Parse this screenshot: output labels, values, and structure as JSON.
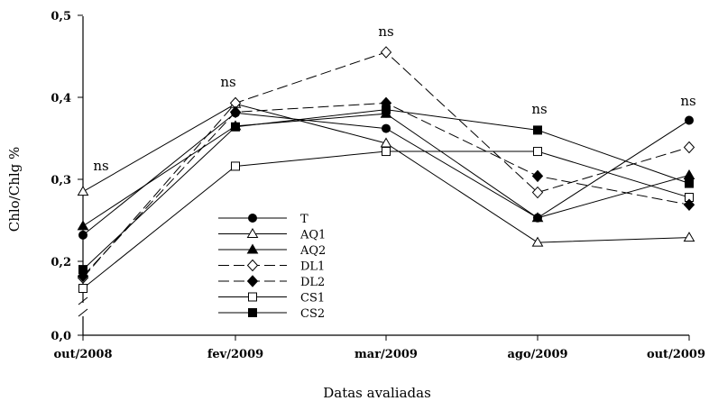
{
  "chart_data": {
    "type": "line",
    "title": "",
    "xlabel": "Datas avaliadas",
    "ylabel": "Chlo/Chlg %",
    "x": [
      "out/2008",
      "fev/2009",
      "mar/2009",
      "ago/2009",
      "out/2009"
    ],
    "yticks": [
      "0,0",
      "0,2",
      "0,3",
      "0,4",
      "0,5"
    ],
    "ylim": [
      0.15,
      0.5
    ],
    "y_axis_break": true,
    "grid": false,
    "legend_position": "center-left",
    "annotations": [
      "ns",
      "ns",
      "ns",
      "ns",
      "ns"
    ],
    "series": [
      {
        "name": "T",
        "line": "solid",
        "marker": "circle",
        "filled": true,
        "values": [
          0.232,
          0.381,
          0.362,
          0.253,
          0.372
        ]
      },
      {
        "name": "AQ1",
        "line": "solid",
        "marker": "triangle",
        "filled": false,
        "values": [
          0.285,
          0.392,
          0.344,
          0.223,
          0.229
        ]
      },
      {
        "name": "AQ2",
        "line": "solid",
        "marker": "triangle",
        "filled": true,
        "values": [
          0.243,
          0.365,
          0.38,
          0.253,
          0.305
        ]
      },
      {
        "name": "DL1",
        "line": "dashed",
        "marker": "diamond",
        "filled": false,
        "values": [
          0.18,
          0.393,
          0.455,
          0.284,
          0.339
        ]
      },
      {
        "name": "DL2",
        "line": "dashed",
        "marker": "diamond",
        "filled": true,
        "values": [
          0.182,
          0.382,
          0.393,
          0.304,
          0.269
        ]
      },
      {
        "name": "CS1",
        "line": "solid",
        "marker": "square",
        "filled": false,
        "values": [
          0.167,
          0.316,
          0.334,
          0.334,
          0.278
        ]
      },
      {
        "name": "CS2",
        "line": "solid",
        "marker": "square",
        "filled": true,
        "values": [
          0.19,
          0.364,
          0.385,
          0.36,
          0.295
        ]
      }
    ]
  }
}
